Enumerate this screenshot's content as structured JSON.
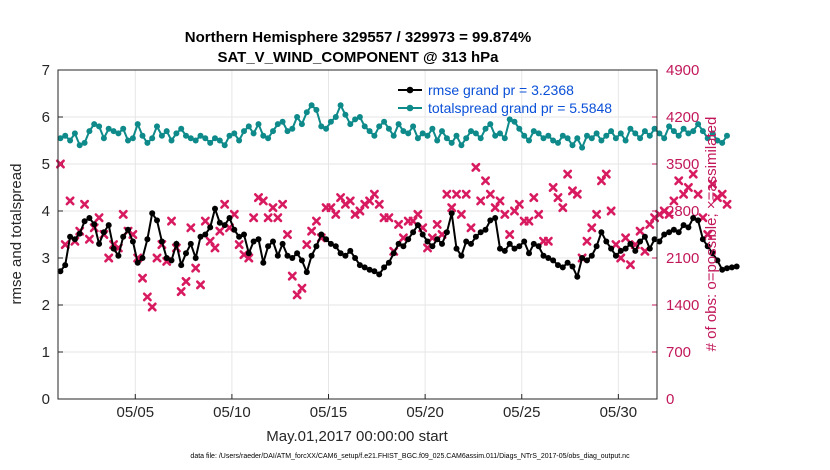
{
  "chart_data": {
    "type": "line",
    "title_line1": "Northern Hemisphere 329557 / 329973 = 99.874%",
    "title_line2": "SAT_V_WIND_COMPONENT @ 313 hPa",
    "xlabel": "May.01,2017 00:00:00 start",
    "ylabel_left": "rmse and totalspread",
    "ylabel_right": "# of obs: o=possible; ×=assimilated",
    "x_tick_labels": [
      "05/05",
      "05/10",
      "05/15",
      "05/20",
      "05/25",
      "05/30"
    ],
    "x_tick_days": [
      5,
      10,
      15,
      20,
      25,
      30
    ],
    "xlim_days": [
      1,
      32
    ],
    "ylim_left": [
      0,
      7
    ],
    "y_left_ticks": [
      "0",
      "1",
      "2",
      "3",
      "4",
      "5",
      "6",
      "7"
    ],
    "ylim_right": [
      0,
      4900
    ],
    "y_right_ticks": [
      "0",
      "700",
      "1400",
      "2100",
      "2800",
      "3500",
      "4200",
      "4900"
    ],
    "grid": true,
    "legend": {
      "position": "top-right",
      "entries": [
        "rmse grand pr = 3.2368",
        "totalspread grand pr = 5.5848"
      ]
    },
    "colors": {
      "rmse": "#000000",
      "totalspread": "#0e8a8a",
      "obs": "#d81b60",
      "legend_text": "#0a50d8"
    },
    "steps_per_day": 4,
    "series": [
      {
        "name": "rmse",
        "values": [
          2.72,
          2.85,
          3.45,
          3.4,
          3.52,
          3.78,
          3.85,
          3.72,
          3.3,
          3.55,
          3.7,
          3.2,
          3.05,
          3.45,
          3.6,
          3.35,
          2.9,
          3.0,
          3.4,
          3.95,
          3.8,
          3.35,
          3.0,
          2.95,
          3.3,
          2.85,
          3.1,
          3.3,
          3.0,
          3.45,
          3.5,
          3.65,
          4.05,
          3.75,
          3.7,
          3.85,
          3.6,
          3.45,
          3.5,
          3.1,
          3.35,
          3.4,
          2.9,
          3.25,
          3.35,
          3.05,
          3.3,
          3.05,
          3.0,
          3.1,
          2.95,
          2.7,
          3.05,
          3.25,
          3.5,
          3.4,
          3.3,
          3.25,
          3.1,
          3.05,
          3.15,
          3.0,
          2.85,
          2.8,
          2.75,
          2.72,
          2.65,
          2.8,
          2.9,
          3.1,
          3.3,
          3.25,
          3.4,
          3.55,
          3.7,
          3.5,
          3.35,
          3.25,
          3.4,
          3.3,
          3.55,
          3.95,
          3.2,
          3.05,
          3.35,
          3.3,
          3.45,
          3.55,
          3.6,
          3.8,
          3.85,
          3.2,
          3.15,
          3.3,
          3.2,
          3.25,
          3.35,
          3.1,
          3.3,
          3.25,
          3.05,
          3.0,
          2.95,
          2.85,
          2.8,
          2.9,
          2.82,
          2.6,
          3.0,
          2.95,
          3.05,
          3.25,
          3.55,
          3.35,
          3.2,
          3.05,
          3.15,
          3.2,
          3.3,
          3.15,
          3.35,
          3.45,
          3.2,
          3.4,
          3.35,
          3.5,
          3.55,
          3.6,
          3.55,
          3.7,
          3.65,
          3.85,
          3.8,
          3.4,
          3.25,
          3.1,
          2.95,
          2.75,
          2.78,
          2.8,
          2.82
        ]
      },
      {
        "name": "totalspread",
        "values": [
          5.55,
          5.6,
          5.5,
          5.65,
          5.4,
          5.45,
          5.7,
          5.85,
          5.8,
          5.55,
          5.75,
          5.7,
          5.65,
          5.75,
          5.5,
          5.55,
          5.85,
          5.6,
          5.45,
          5.55,
          5.8,
          5.6,
          5.7,
          5.5,
          5.65,
          5.75,
          5.6,
          5.55,
          5.5,
          5.6,
          5.55,
          5.45,
          5.55,
          5.5,
          5.4,
          5.6,
          5.65,
          5.5,
          5.7,
          5.8,
          5.65,
          5.85,
          5.6,
          5.55,
          5.7,
          5.85,
          5.9,
          5.7,
          5.75,
          6.0,
          5.85,
          6.1,
          6.25,
          6.15,
          5.8,
          5.75,
          5.9,
          6.0,
          6.25,
          6.05,
          5.85,
          5.95,
          6.0,
          5.8,
          5.7,
          5.6,
          5.8,
          5.9,
          5.75,
          5.6,
          5.85,
          5.7,
          5.65,
          5.8,
          5.55,
          5.65,
          5.6,
          5.75,
          5.5,
          5.7,
          5.55,
          5.45,
          5.6,
          5.4,
          5.55,
          5.7,
          5.65,
          5.55,
          5.75,
          5.85,
          5.6,
          5.65,
          5.55,
          5.95,
          5.9,
          5.75,
          5.6,
          5.5,
          5.7,
          5.65,
          5.55,
          5.6,
          5.5,
          5.45,
          5.6,
          5.55,
          5.4,
          5.55,
          5.35,
          5.6,
          5.55,
          5.65,
          5.5,
          5.6,
          5.7,
          5.55,
          5.65,
          5.5,
          5.75,
          5.65,
          5.55,
          5.7,
          5.6,
          5.75,
          5.65,
          5.55,
          5.8,
          5.7,
          5.6,
          5.75,
          5.65,
          5.7,
          5.85,
          5.7,
          5.55,
          5.65,
          5.5,
          5.45,
          5.6
        ]
      },
      {
        "name": "obs assimilated",
        "marker": "×",
        "values": [
          3500,
          2300,
          2950,
          2350,
          2500,
          2900,
          2380,
          2550,
          2700,
          2450,
          2100,
          2300,
          2250,
          2750,
          2500,
          2450,
          2100,
          1800,
          1520,
          1370,
          2100,
          2300,
          2050,
          2650,
          2250,
          1600,
          1750,
          2550,
          1950,
          1700,
          2650,
          2350,
          2250,
          2500,
          2900,
          2550,
          2750,
          2300,
          2150,
          2100,
          2700,
          3000,
          2950,
          2700,
          2850,
          2700,
          2900,
          2450,
          1830,
          1550,
          1650,
          2300,
          2500,
          2650,
          2400,
          2850,
          2850,
          2750,
          3000,
          2900,
          2950,
          2750,
          2800,
          2900,
          2950,
          3050,
          2900,
          2700,
          2700,
          2200,
          2600,
          2400,
          2650,
          2650,
          2750,
          2550,
          2250,
          2400,
          2600,
          2450,
          3050,
          2850,
          3050,
          2750,
          3050,
          2550,
          3450,
          2950,
          3250,
          3050,
          2850,
          2950,
          2750,
          2450,
          2800,
          2900,
          2650,
          2650,
          3000,
          2750,
          2350,
          2350,
          3150,
          3000,
          2850,
          3350,
          3100,
          3050,
          2100,
          2350,
          2550,
          2750,
          3250,
          3350,
          2800,
          2300,
          2100,
          2400,
          2000,
          2300,
          2500,
          2200,
          2600,
          2700,
          2750,
          2800,
          2750,
          2950,
          3250,
          3050,
          3150,
          3350,
          3050,
          2700,
          2450,
          3200,
          3000,
          3050,
          2900
        ]
      }
    ]
  },
  "footer": {
    "data_file": "data file: /Users/raeder/DAI/ATM_forcXX/CAM6_setup/f.e21.FHIST_BGC.f09_025.CAM6assim.011/Diags_NTrS_2017-05/obs_diag_output.nc"
  }
}
